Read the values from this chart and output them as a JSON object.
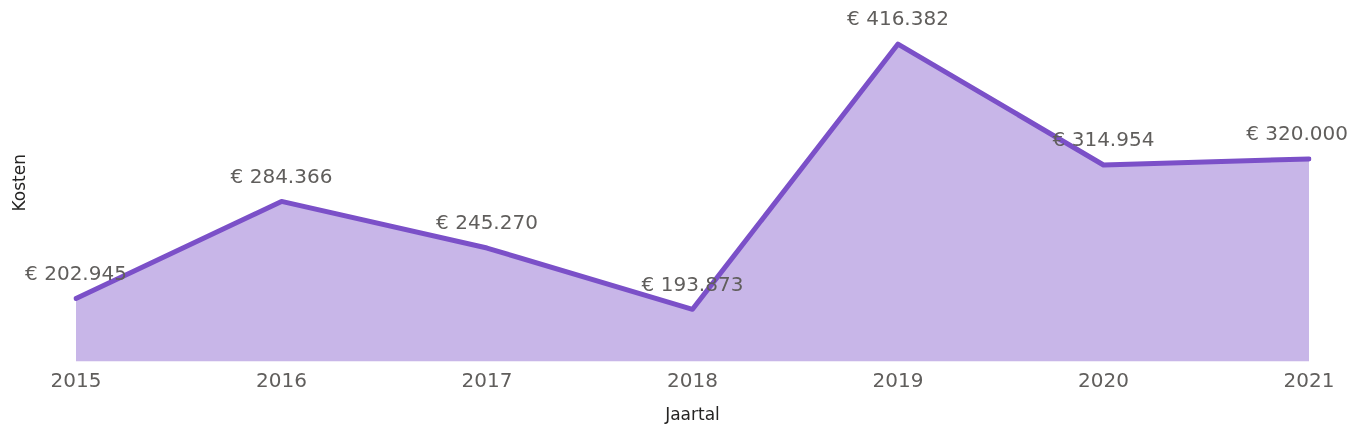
{
  "chart_data": {
    "type": "area",
    "xlabel": "Jaartal",
    "ylabel": "Kosten",
    "categories": [
      "2015",
      "2016",
      "2017",
      "2018",
      "2019",
      "2020",
      "2021"
    ],
    "series": [
      {
        "color": "#7b50c8",
        "values": [
          202945,
          284366,
          245270,
          193873,
          416382,
          314954,
          320000
        ],
        "value_labels": [
          "€ 202.945",
          "€ 284.366",
          "€ 245.270",
          "€ 193.873",
          "€ 416.382",
          "€ 314.954",
          "€ 320.000"
        ]
      }
    ],
    "tick_labels": "x",
    "grid": false,
    "legend": false,
    "marker": "none",
    "line_style": "solid"
  }
}
